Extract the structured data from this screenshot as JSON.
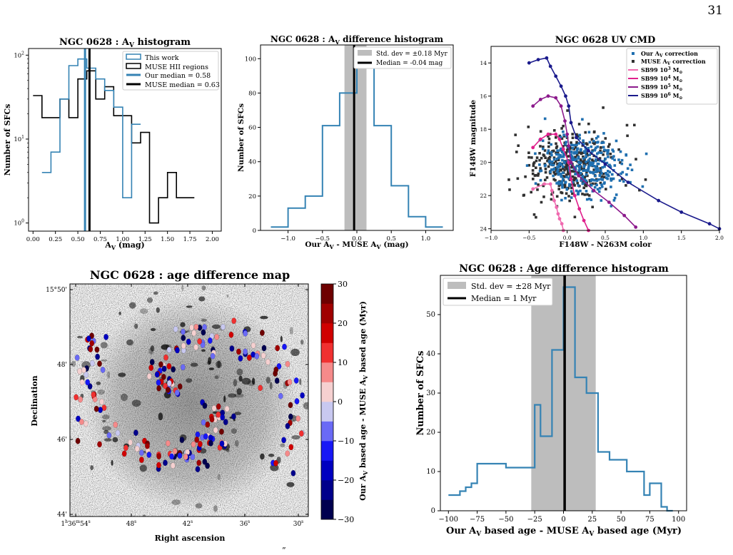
{
  "page_number": "31",
  "caption_fragment": "”",
  "colors": {
    "this_work": "#3583b4",
    "muse": "#000000",
    "sb99_1e3": "#f06ab0",
    "sb99_1e4": "#e0208c",
    "sb99_1e5": "#8c1a8c",
    "sb99_1e6": "#1a1a8c",
    "std_band": "#bdbdbd",
    "our_av_points": "#1f6fb0",
    "muse_av_points": "#303030"
  },
  "chart_data": [
    {
      "id": "av_histogram",
      "type": "bar",
      "style": "step histogram",
      "title": "NGC 0628 : A",
      "title_sub": "V",
      "title_end": " histogram",
      "xlabel": "A",
      "xlabel_sub": "V",
      "xlabel_end": " (mag)",
      "ylabel": "Number of SFCs",
      "yscale": "log",
      "xlim": [
        -0.05,
        2.1
      ],
      "ylim": [
        0.8,
        120
      ],
      "xticks": [
        "0.00",
        "0.25",
        "0.50",
        "0.75",
        "1.00",
        "1.25",
        "1.50",
        "1.75",
        "2.00"
      ],
      "yticks": [
        {
          "base": "10",
          "exp": "0"
        },
        {
          "base": "10",
          "exp": "1"
        },
        {
          "base": "10",
          "exp": "2"
        }
      ],
      "legend": {
        "placement": "top-right",
        "entries": [
          "This work",
          "MUSE HII regions",
          "Our median = 0.58",
          "MUSE median = 0.63"
        ]
      },
      "series": [
        {
          "name": "This work",
          "bin_edges": [
            0.1,
            0.2,
            0.3,
            0.4,
            0.5,
            0.6,
            0.7,
            0.8,
            0.9,
            1.0,
            1.1,
            1.2
          ],
          "counts": [
            4,
            7,
            30,
            75,
            90,
            70,
            52,
            38,
            24,
            2,
            15
          ]
        },
        {
          "name": "MUSE HII regions",
          "bin_edges": [
            0.0,
            0.1,
            0.2,
            0.3,
            0.4,
            0.5,
            0.6,
            0.7,
            0.8,
            0.9,
            1.0,
            1.1,
            1.2,
            1.3,
            1.4,
            1.5,
            1.6,
            1.8
          ],
          "counts": [
            33,
            18,
            18,
            30,
            18,
            52,
            65,
            30,
            42,
            19,
            19,
            9,
            12,
            1,
            2,
            4,
            2
          ]
        }
      ],
      "vlines": [
        {
          "name": "Our median = 0.58",
          "x": 0.58
        },
        {
          "name": "MUSE median = 0.63",
          "x": 0.63
        }
      ]
    },
    {
      "id": "av_difference_histogram",
      "type": "bar",
      "style": "step histogram",
      "title": "NGC 0628 : A",
      "title_sub": "V",
      "title_end": " difference histogram",
      "xlabel": "Our A",
      "xlabel_sub": "V",
      "xlabel_end": " - MUSE A",
      "xlabel_sub2": "V",
      "xlabel_end2": " (mag)",
      "ylabel": "Number of SFCs",
      "xlim": [
        -1.4,
        1.4
      ],
      "ylim": [
        0,
        108
      ],
      "xticks": [
        "−1.0",
        "−0.5",
        "0.0",
        "0.5",
        "1.0"
      ],
      "xtick_values": [
        -1.0,
        -0.5,
        0.0,
        0.5,
        1.0
      ],
      "yticks": [
        "0",
        "20",
        "40",
        "60",
        "80",
        "100"
      ],
      "legend": {
        "placement": "top-right",
        "entries": [
          "Std. dev = ±0.18 Myr",
          "Median = -0.04 mag"
        ]
      },
      "bin_edges": [
        -1.25,
        -1.0,
        -0.75,
        -0.5,
        -0.25,
        0.0,
        0.25,
        0.5,
        0.75,
        1.0,
        1.25
      ],
      "counts": [
        2,
        13,
        20,
        61,
        80,
        100,
        61,
        26,
        8,
        2
      ],
      "std_band": [
        -0.18,
        0.14
      ],
      "median": -0.04
    },
    {
      "id": "uv_cmd",
      "type": "scatter",
      "title": "NGC 0628 UV CMD",
      "xlabel": "F148W - N263M color",
      "ylabel": "F148W magnitude",
      "xlim": [
        -1.0,
        2.0
      ],
      "ylim": [
        24.1,
        13.0
      ],
      "y_inverted": true,
      "xticks": [
        "−1.0",
        "−0.5",
        "0.0",
        "0.5",
        "1.0",
        "1.5",
        "2.0"
      ],
      "xtick_values": [
        -1.0,
        -0.5,
        0.0,
        0.5,
        1.0,
        1.5,
        2.0
      ],
      "yticks": [
        "14",
        "16",
        "18",
        "20",
        "22",
        "24"
      ],
      "ytick_values": [
        14,
        16,
        18,
        20,
        22,
        24
      ],
      "legend": {
        "placement": "top-right",
        "entries": [
          {
            "text": "Our A",
            "sub": "V",
            "end": " correction"
          },
          {
            "text": "MUSE A",
            "sub": "V",
            "end": " correction"
          },
          {
            "text": "SB99 10",
            "sup": "3",
            "end": " M",
            "sun": "⊙"
          },
          {
            "text": "SB99 10",
            "sup": "4",
            "end": " M",
            "sun": "⊙"
          },
          {
            "text": "SB99 10",
            "sup": "5",
            "end": " M",
            "sun": "⊙"
          },
          {
            "text": "SB99 10",
            "sup": "6",
            "end": " M",
            "sun": "⊙"
          }
        ]
      },
      "scatter_series": [
        {
          "name": "Our AV correction",
          "count": 320,
          "center": [
            0.2,
            20.3
          ],
          "spread": [
            0.28,
            1.05
          ]
        },
        {
          "name": "MUSE AV correction",
          "count": 360,
          "center": [
            0.05,
            20.2
          ],
          "spread": [
            0.32,
            1.2
          ]
        }
      ],
      "tracks": [
        {
          "name": "SB99 1e3 Msun",
          "points": [
            [
              -0.45,
              21.6
            ],
            [
              -0.3,
              21.3
            ],
            [
              -0.22,
              21.3
            ],
            [
              -0.2,
              21.7
            ],
            [
              -0.17,
              22.3
            ],
            [
              -0.14,
              22.7
            ],
            [
              -0.12,
              23.1
            ],
            [
              -0.1,
              23.4
            ],
            [
              -0.07,
              23.7
            ],
            [
              -0.05,
              24.1
            ]
          ]
        },
        {
          "name": "SB99 1e4 Msun",
          "points": [
            [
              -0.45,
              19.1
            ],
            [
              -0.35,
              18.6
            ],
            [
              -0.25,
              18.3
            ],
            [
              -0.15,
              18.3
            ],
            [
              -0.1,
              18.6
            ],
            [
              -0.05,
              19.2
            ],
            [
              0.02,
              20.0
            ],
            [
              0.05,
              21.0
            ],
            [
              0.1,
              22.0
            ],
            [
              0.16,
              22.8
            ],
            [
              0.22,
              23.5
            ],
            [
              0.28,
              24.1
            ]
          ]
        },
        {
          "name": "SB99 1e5 Msun",
          "points": [
            [
              -0.45,
              16.6
            ],
            [
              -0.35,
              16.2
            ],
            [
              -0.25,
              16.0
            ],
            [
              -0.15,
              16.1
            ],
            [
              -0.08,
              16.6
            ],
            [
              -0.03,
              17.5
            ],
            [
              0.0,
              18.3
            ],
            [
              0.02,
              19.0
            ],
            [
              0.05,
              20.0
            ],
            [
              0.15,
              20.8
            ],
            [
              0.35,
              21.7
            ],
            [
              0.55,
              22.4
            ],
            [
              0.75,
              23.2
            ],
            [
              0.9,
              23.9
            ]
          ]
        },
        {
          "name": "SB99 1e6 Msun",
          "points": [
            [
              -0.5,
              14.0
            ],
            [
              -0.38,
              13.8
            ],
            [
              -0.27,
              13.7
            ],
            [
              -0.22,
              14.2
            ],
            [
              -0.15,
              14.8
            ],
            [
              -0.08,
              15.4
            ],
            [
              -0.02,
              16.0
            ],
            [
              0.02,
              16.6
            ],
            [
              0.05,
              17.6
            ],
            [
              0.12,
              18.5
            ],
            [
              0.28,
              19.3
            ],
            [
              0.5,
              20.1
            ],
            [
              0.8,
              21.2
            ],
            [
              1.2,
              22.3
            ],
            [
              1.5,
              23.0
            ],
            [
              1.87,
              23.7
            ],
            [
              2.0,
              24.0
            ]
          ]
        }
      ]
    },
    {
      "id": "age_difference_map",
      "type": "scatter",
      "title": "NGC 0628 : age difference map",
      "xlabel": "Right ascension",
      "ylabel": "Declination",
      "xticks": [
        {
          "text": "1",
          "sup": "h",
          "text2": "36",
          "sup2": "m",
          "text3": "54",
          "sup3": "s"
        },
        {
          "text": "48",
          "sup": "s"
        },
        {
          "text": "42",
          "sup": "s"
        },
        {
          "text": "36",
          "sup": "s"
        },
        {
          "text": "30",
          "sup": "s"
        }
      ],
      "yticks": [
        "15°50'",
        "48'",
        "46'",
        "44'"
      ],
      "colorbar": {
        "label": "Our A",
        "label_sub": "V",
        "label_end": " based age - MUSE A",
        "label_sub2": "V",
        "label_end2": " based age (Myr)",
        "ticks": [
          "30",
          "20",
          "10",
          "0",
          "−10",
          "−20",
          "−30"
        ],
        "range": [
          -30,
          30
        ],
        "levels": 12
      },
      "points": {
        "count": 230,
        "value_range_myr": [
          -30,
          30
        ]
      }
    },
    {
      "id": "age_difference_histogram",
      "type": "bar",
      "style": "step histogram",
      "title": "NGC 0628 : Age difference histogram",
      "xlabel": "Our A",
      "xlabel_sub": "V",
      "xlabel_end": " based age - MUSE A",
      "xlabel_sub2": "V",
      "xlabel_end2": " based age (Myr)",
      "ylabel": "Number of SFCs",
      "xlim": [
        -107,
        107
      ],
      "ylim": [
        0,
        60
      ],
      "xticks": [
        "−100",
        "−75",
        "−50",
        "−25",
        "0",
        "25",
        "50",
        "75",
        "100"
      ],
      "xtick_values": [
        -100,
        -75,
        -50,
        -25,
        0,
        25,
        50,
        75,
        100
      ],
      "yticks": [
        "0",
        "10",
        "20",
        "30",
        "40",
        "50"
      ],
      "ytick_values": [
        0,
        10,
        20,
        30,
        40,
        50
      ],
      "legend": {
        "placement": "top-left",
        "entries": [
          "Std. dev = ±28 Myr",
          "Median = 1 Myr"
        ]
      },
      "bin_edges": [
        -100,
        -95,
        -90,
        -85,
        -80,
        -75,
        -55,
        -50,
        -30,
        -25,
        -20,
        -15,
        -10,
        -5,
        0,
        5,
        10,
        15,
        20,
        25,
        30,
        35,
        40,
        45,
        50,
        55,
        60,
        65,
        70,
        75,
        80,
        85,
        90,
        95
      ],
      "counts": [
        4,
        4,
        5,
        6,
        7,
        12,
        12,
        11,
        11,
        27,
        19,
        19,
        41,
        41,
        57,
        57,
        34,
        34,
        30,
        30,
        15,
        15,
        13,
        13,
        13,
        10,
        10,
        10,
        4,
        7,
        7,
        1,
        0
      ],
      "std_band": [
        -28,
        28
      ],
      "median": 1
    }
  ]
}
